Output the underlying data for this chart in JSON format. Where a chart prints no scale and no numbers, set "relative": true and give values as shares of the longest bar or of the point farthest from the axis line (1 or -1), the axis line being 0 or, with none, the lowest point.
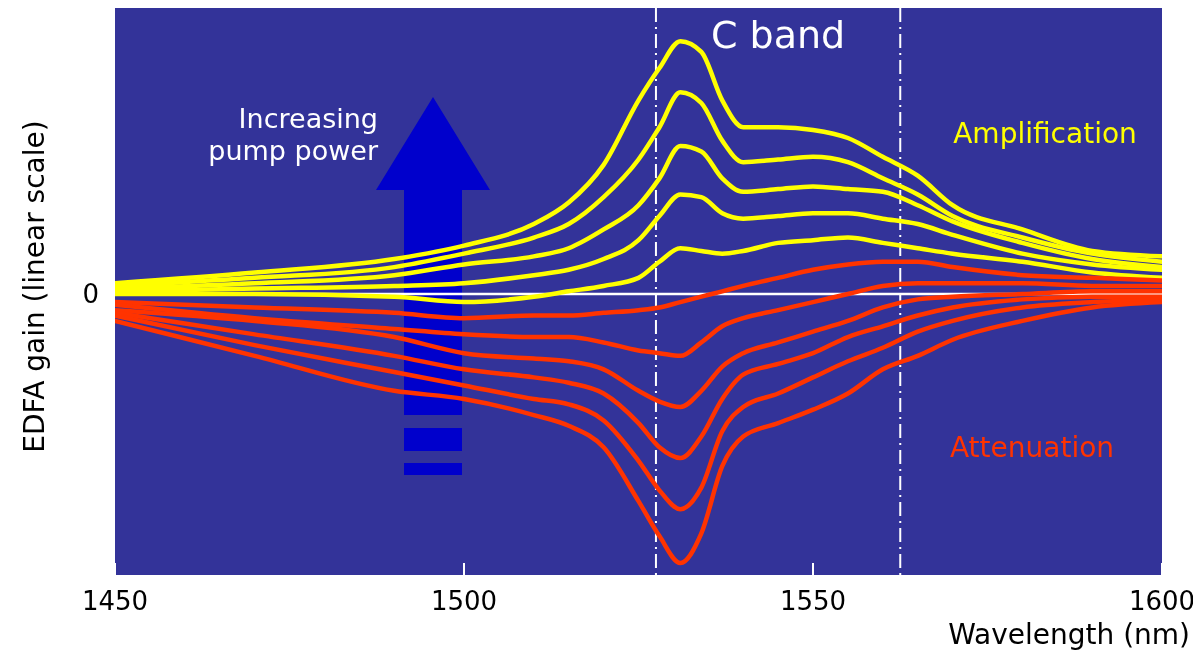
{
  "chart_data": {
    "type": "line",
    "xlabel": "Wavelength (nm)",
    "ylabel": "EDFA gain (linear scale)",
    "relative": true,
    "xlim": [
      1450,
      1600
    ],
    "xticks": [
      1450,
      1500,
      1550,
      1600
    ],
    "x": [
      1450,
      1470,
      1490,
      1500,
      1510,
      1515,
      1520,
      1525,
      1528,
      1531,
      1534,
      1537,
      1540,
      1545,
      1550,
      1555,
      1560,
      1565,
      1570,
      1580,
      1590,
      1600
    ],
    "series": [
      {
        "color": "#ffff00",
        "values": [
          0.04,
          0.08,
          0.13,
          0.18,
          0.26,
          0.34,
          0.48,
          0.72,
          0.84,
          0.94,
          0.9,
          0.72,
          0.62,
          0.62,
          0.61,
          0.58,
          0.51,
          0.44,
          0.33,
          0.24,
          0.16,
          0.14
        ]
      },
      {
        "color": "#ffff00",
        "values": [
          0.03,
          0.06,
          0.1,
          0.15,
          0.21,
          0.26,
          0.36,
          0.5,
          0.62,
          0.75,
          0.71,
          0.57,
          0.49,
          0.5,
          0.51,
          0.49,
          0.43,
          0.37,
          0.29,
          0.21,
          0.15,
          0.12
        ]
      },
      {
        "color": "#ffff00",
        "values": [
          0.02,
          0.04,
          0.07,
          0.11,
          0.14,
          0.17,
          0.24,
          0.33,
          0.43,
          0.55,
          0.53,
          0.43,
          0.38,
          0.39,
          0.4,
          0.39,
          0.38,
          0.33,
          0.27,
          0.19,
          0.13,
          0.1
        ]
      },
      {
        "color": "#ffff00",
        "values": [
          0.01,
          0.02,
          0.03,
          0.04,
          0.07,
          0.09,
          0.13,
          0.2,
          0.29,
          0.37,
          0.36,
          0.3,
          0.28,
          0.29,
          0.3,
          0.3,
          0.28,
          0.26,
          0.22,
          0.15,
          0.11,
          0.09
        ]
      },
      {
        "color": "#ffff00",
        "values": [
          0.0,
          0.0,
          -0.01,
          -0.03,
          -0.01,
          0.01,
          0.03,
          0.06,
          0.12,
          0.17,
          0.16,
          0.15,
          0.16,
          0.19,
          0.2,
          0.21,
          0.19,
          0.17,
          0.15,
          0.12,
          0.08,
          0.06
        ]
      },
      {
        "color": "#ff3300",
        "values": [
          -0.03,
          -0.05,
          -0.07,
          -0.09,
          -0.08,
          -0.08,
          -0.07,
          -0.06,
          -0.05,
          -0.03,
          -0.01,
          0.01,
          0.03,
          0.06,
          0.09,
          0.11,
          0.12,
          0.12,
          0.1,
          0.07,
          0.06,
          0.05
        ]
      },
      {
        "color": "#ff3300",
        "values": [
          -0.04,
          -0.09,
          -0.13,
          -0.15,
          -0.16,
          -0.16,
          -0.18,
          -0.21,
          -0.22,
          -0.23,
          -0.18,
          -0.12,
          -0.09,
          -0.06,
          -0.03,
          0.0,
          0.03,
          0.04,
          0.04,
          0.04,
          0.03,
          0.03
        ]
      },
      {
        "color": "#ff3300",
        "values": [
          -0.06,
          -0.1,
          -0.16,
          -0.22,
          -0.24,
          -0.25,
          -0.28,
          -0.36,
          -0.4,
          -0.42,
          -0.36,
          -0.27,
          -0.22,
          -0.18,
          -0.14,
          -0.1,
          -0.05,
          -0.02,
          -0.01,
          0.0,
          0.01,
          0.01
        ]
      },
      {
        "color": "#ff3300",
        "values": [
          -0.07,
          -0.15,
          -0.23,
          -0.28,
          -0.31,
          -0.33,
          -0.37,
          -0.48,
          -0.57,
          -0.61,
          -0.53,
          -0.39,
          -0.3,
          -0.26,
          -0.22,
          -0.16,
          -0.12,
          -0.08,
          -0.05,
          -0.02,
          -0.01,
          -0.01
        ]
      },
      {
        "color": "#ff3300",
        "values": [
          -0.08,
          -0.19,
          -0.29,
          -0.34,
          -0.39,
          -0.41,
          -0.47,
          -0.62,
          -0.73,
          -0.8,
          -0.72,
          -0.51,
          -0.42,
          -0.37,
          -0.31,
          -0.25,
          -0.2,
          -0.14,
          -0.1,
          -0.05,
          -0.03,
          -0.02
        ]
      },
      {
        "color": "#ff3300",
        "values": [
          -0.1,
          -0.23,
          -0.36,
          -0.39,
          -0.45,
          -0.49,
          -0.57,
          -0.77,
          -0.9,
          -1.0,
          -0.89,
          -0.64,
          -0.53,
          -0.48,
          -0.43,
          -0.37,
          -0.28,
          -0.23,
          -0.17,
          -0.1,
          -0.05,
          -0.03
        ]
      }
    ],
    "ref_lines": [
      {
        "axis": "y",
        "value": 0,
        "label": "0",
        "color": "#ffffff"
      },
      {
        "axis": "x",
        "value": 1527.5,
        "color": "#ffffff",
        "line_style": "dashed"
      },
      {
        "axis": "x",
        "value": 1562.5,
        "color": "#ffffff",
        "line_style": "dashed"
      }
    ],
    "annotations": [
      "Increasing pump power",
      "Amplification",
      "Attenuation",
      "C band"
    ]
  }
}
